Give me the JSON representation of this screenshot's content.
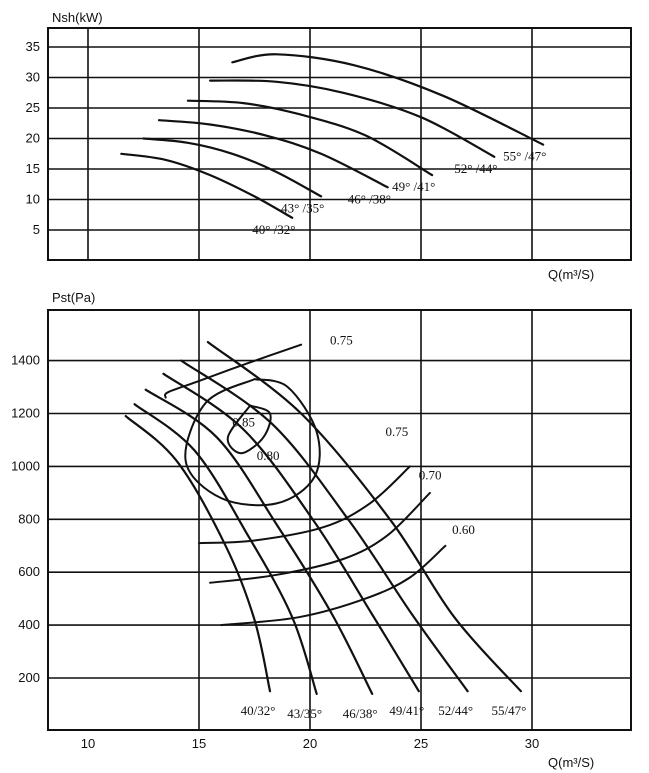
{
  "chart_data": [
    {
      "type": "line",
      "ylabel": "Nsh(kW)",
      "xlabel": "Q(m³/S)",
      "yticks": [
        "5",
        "10",
        "15",
        "20",
        "25",
        "30",
        "35"
      ],
      "grid": true,
      "series": [
        {
          "name": "40° /32°",
          "x": [
            11.5,
            13.5,
            15.5,
            17.5,
            19.2
          ],
          "y": [
            17.5,
            16.5,
            14,
            10.5,
            7
          ]
        },
        {
          "name": "43° /35°",
          "x": [
            12.5,
            14.5,
            16.5,
            18.5,
            20.5
          ],
          "y": [
            20,
            19.3,
            17.5,
            14.5,
            10.5
          ]
        },
        {
          "name": "46° /38°",
          "x": [
            13.2,
            15.5,
            18,
            20.5,
            23.5
          ],
          "y": [
            23,
            22.3,
            20.5,
            17.5,
            12
          ]
        },
        {
          "name": "49° /41°",
          "x": [
            14.5,
            17,
            19.5,
            22.5,
            25.5
          ],
          "y": [
            26.2,
            25.8,
            24,
            20.5,
            14
          ]
        },
        {
          "name": "52° /44°",
          "x": [
            15.5,
            18.5,
            21.5,
            25,
            28.3
          ],
          "y": [
            29.5,
            29.3,
            27.5,
            23.5,
            17
          ]
        },
        {
          "name": "55° /47°",
          "x": [
            16.5,
            18.5,
            22,
            26,
            30.5
          ],
          "y": [
            32.5,
            33.8,
            32,
            27,
            19
          ]
        }
      ]
    },
    {
      "type": "line",
      "ylabel": "Pst(Pa)",
      "xlabel": "Q(m³/S)",
      "xticks": [
        "10",
        "15",
        "20",
        "25",
        "30"
      ],
      "yticks": [
        "200",
        "400",
        "600",
        "800",
        "1000",
        "1200",
        "1400"
      ],
      "grid": true,
      "blade_curves": [
        {
          "name": "40/32°",
          "x": [
            11.7,
            14,
            16.2,
            17.5,
            18.2
          ],
          "y": [
            1190,
            1020,
            700,
            420,
            150
          ]
        },
        {
          "name": "43/35°",
          "x": [
            12.1,
            14.8,
            17.2,
            19.2,
            20.3
          ],
          "y": [
            1235,
            1060,
            740,
            430,
            140
          ]
        },
        {
          "name": "46/38°",
          "x": [
            12.6,
            15.8,
            18.5,
            21,
            22.8
          ],
          "y": [
            1290,
            1110,
            780,
            440,
            140
          ]
        },
        {
          "name": "49/41°",
          "x": [
            13.4,
            17,
            20.2,
            22.8,
            24.9
          ],
          "y": [
            1350,
            1140,
            790,
            440,
            150
          ]
        },
        {
          "name": "52/44°",
          "x": [
            14.2,
            18.3,
            21.8,
            24.6,
            27.1
          ],
          "y": [
            1400,
            1160,
            790,
            440,
            150
          ]
        },
        {
          "name": "55/47°",
          "x": [
            15.4,
            19.6,
            23.6,
            26.5,
            29.5
          ],
          "y": [
            1470,
            1200,
            800,
            430,
            150
          ]
        }
      ],
      "efficiency_contours": [
        {
          "name": "0.85",
          "x": [
            17.3,
            16.3,
            16.9,
            17.9,
            18.2,
            17.3
          ],
          "y": [
            1230,
            1110,
            1050,
            1110,
            1200,
            1230
          ]
        },
        {
          "name": "0.80",
          "x": [
            17.5,
            15.3,
            14.4,
            16,
            18.5,
            20.2,
            20.3,
            19,
            17.5
          ],
          "y": [
            1330,
            1240,
            1020,
            880,
            860,
            960,
            1130,
            1300,
            1330
          ]
        },
        {
          "name": "0.75",
          "x": [
            19.6,
            17.2,
            14.9,
            13.6,
            13.5
          ],
          "y": [
            1460,
            1390,
            1320,
            1280,
            1260
          ]
        },
        {
          "name": "0.75",
          "x": [
            15,
            17.5,
            20.6,
            22.7,
            24.5
          ],
          "y": [
            710,
            720,
            770,
            860,
            1000
          ]
        },
        {
          "name": "0.70",
          "x": [
            15.5,
            18.5,
            21.5,
            23.5,
            25.4
          ],
          "y": [
            560,
            590,
            650,
            740,
            900
          ]
        },
        {
          "name": "0.60",
          "x": [
            16,
            19.5,
            22.5,
            24.5,
            26.1
          ],
          "y": [
            400,
            430,
            500,
            580,
            700
          ]
        }
      ],
      "labels": [
        {
          "text": "0.75",
          "x": 20.9,
          "y": 1460
        },
        {
          "text": "0.85",
          "x": 16.5,
          "y": 1150
        },
        {
          "text": "0.80",
          "x": 17.6,
          "y": 1025
        },
        {
          "text": "0.75",
          "x": 23.4,
          "y": 1115
        },
        {
          "text": "0.70",
          "x": 24.9,
          "y": 950
        },
        {
          "text": "0.60",
          "x": 26.4,
          "y": 745
        }
      ]
    }
  ]
}
